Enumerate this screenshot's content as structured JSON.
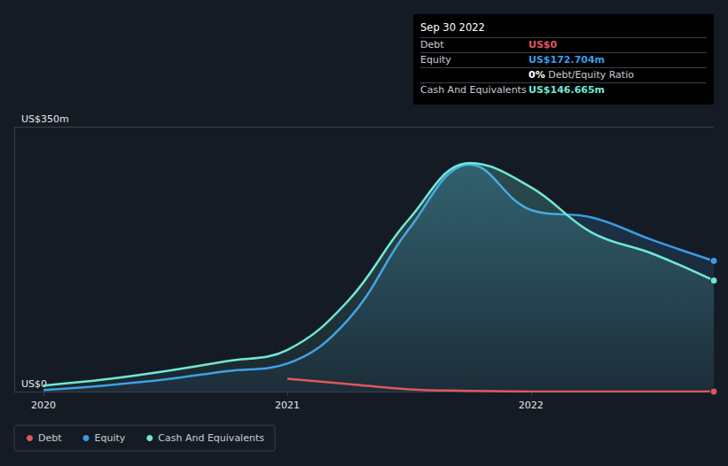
{
  "chart_data": {
    "type": "line",
    "x": [
      2020,
      2020.25,
      2020.5,
      2020.75,
      2021,
      2021.25,
      2021.5,
      2021.75,
      2022,
      2022.25,
      2022.5,
      2022.75
    ],
    "series": [
      {
        "name": "Debt",
        "color": "#e0575b",
        "values": [
          null,
          null,
          null,
          null,
          17,
          10,
          3,
          1,
          0,
          0,
          0,
          0
        ]
      },
      {
        "name": "Equity",
        "color": "#3a9be6",
        "values": [
          2,
          8,
          16,
          27,
          37,
          95,
          215,
          300,
          240,
          230,
          200,
          172.704
        ]
      },
      {
        "name": "Cash And Equivalents",
        "color": "#71e7d6",
        "values": [
          8,
          16,
          27,
          40,
          55,
          120,
          228,
          302,
          270,
          210,
          182,
          146.665
        ]
      }
    ],
    "xlim": [
      2019.88,
      2022.75
    ],
    "xticks": [
      2020,
      2021,
      2022
    ],
    "ylim": [
      0,
      350
    ],
    "yticks": [
      {
        "value": 0,
        "label": "US$0"
      },
      {
        "value": 350,
        "label": "US$350m"
      }
    ],
    "grid": true,
    "legend": "bottom-left"
  },
  "info_box": {
    "title": "Sep 30 2022",
    "rows": [
      {
        "label": "Debt",
        "value": "US$0",
        "color": "#e0575b"
      },
      {
        "label": "Equity",
        "value": "US$172.704m",
        "color": "#3a9be6"
      },
      {
        "ratio": "0%",
        "label": "Debt/Equity Ratio"
      },
      {
        "label": "Cash And Equivalents",
        "value": "US$146.665m",
        "color": "#71e7d6"
      }
    ]
  }
}
